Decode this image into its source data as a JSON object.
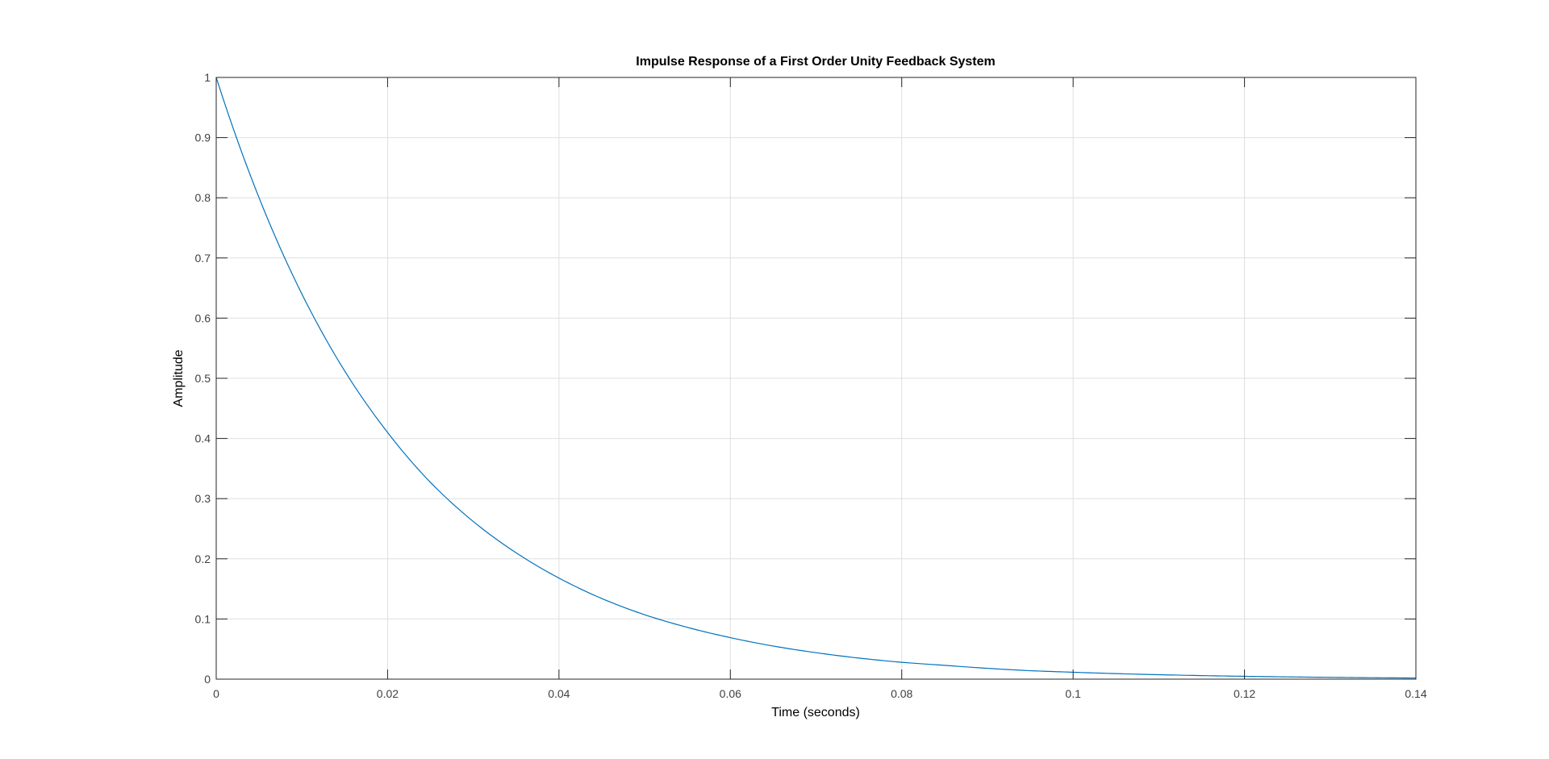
{
  "chart_data": {
    "type": "line",
    "title": "Impulse Response of a First Order Unity Feedback System",
    "xlabel": "Time (seconds)",
    "ylabel": "Amplitude",
    "xlim": [
      0,
      0.14
    ],
    "ylim": [
      0,
      1
    ],
    "xticks": [
      0,
      0.02,
      0.04,
      0.06,
      0.08,
      0.1,
      0.12,
      0.14
    ],
    "xtick_labels": [
      "0",
      "0.02",
      "0.04",
      "0.06",
      "0.08",
      "0.1",
      "0.12",
      "0.14"
    ],
    "yticks": [
      0,
      0.1,
      0.2,
      0.3,
      0.4,
      0.5,
      0.6,
      0.7,
      0.8,
      0.9,
      1
    ],
    "ytick_labels": [
      "0",
      "0.1",
      "0.2",
      "0.3",
      "0.4",
      "0.5",
      "0.6",
      "0.7",
      "0.8",
      "0.9",
      "1"
    ],
    "grid": true,
    "series": [
      {
        "color": "#0072BD",
        "x": [
          0,
          0.005,
          0.01,
          0.015,
          0.02,
          0.025,
          0.03,
          0.035,
          0.04,
          0.045,
          0.05,
          0.055,
          0.06,
          0.065,
          0.07,
          0.075,
          0.08,
          0.085,
          0.09,
          0.095,
          0.1,
          0.105,
          0.11,
          0.115,
          0.12,
          0.125,
          0.13,
          0.135,
          0.14
        ],
        "y": [
          1,
          0.8,
          0.64,
          0.512,
          0.41,
          0.327,
          0.262,
          0.21,
          0.168,
          0.134,
          0.107,
          0.086,
          0.069,
          0.055,
          0.044,
          0.035,
          0.028,
          0.023,
          0.018,
          0.014,
          0.0115,
          0.0092,
          0.0074,
          0.0059,
          0.0047,
          0.0038,
          0.003,
          0.0024,
          0.0019
        ]
      }
    ],
    "colors": {
      "axes": "#262626",
      "grid": "#dfdfdf",
      "tick_text": "#404040"
    }
  }
}
